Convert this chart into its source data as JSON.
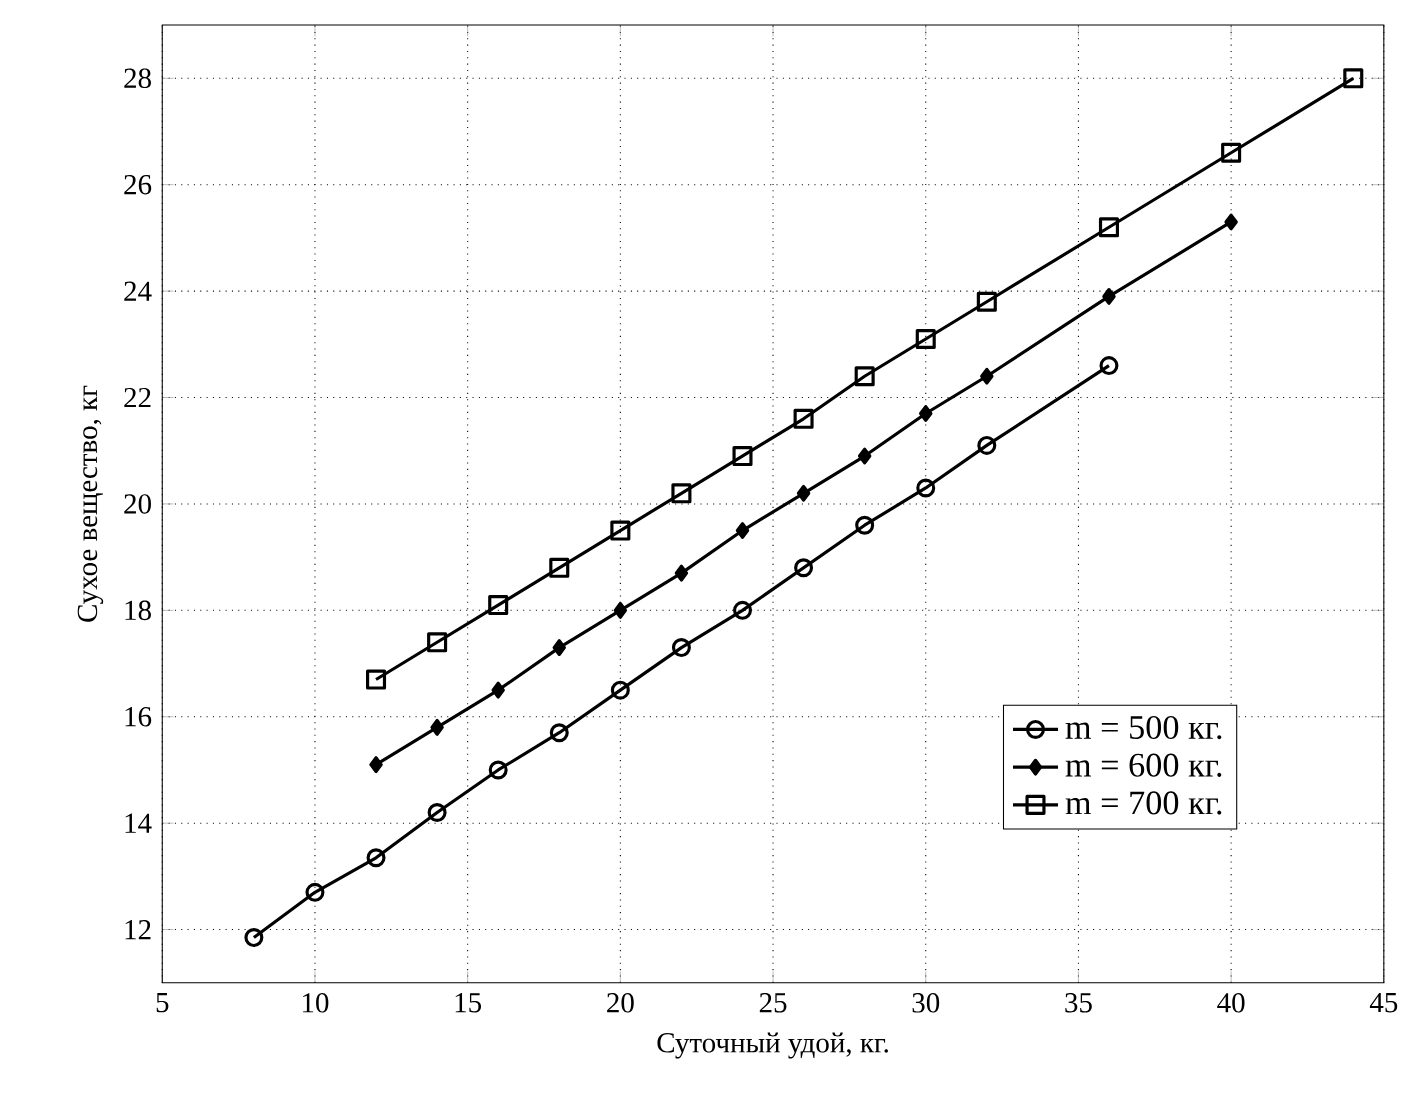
{
  "chart_data": {
    "type": "line",
    "xlabel": "Суточный удой, кг.",
    "ylabel": "Сухое вещество, кг",
    "xlim": [
      5,
      45
    ],
    "ylim": [
      11,
      29
    ],
    "xticks": [
      5,
      10,
      15,
      20,
      25,
      30,
      35,
      40,
      45
    ],
    "yticks": [
      12,
      14,
      16,
      18,
      20,
      22,
      24,
      26,
      28
    ],
    "grid": true,
    "legend": "bottom right",
    "line_style": "solid",
    "series": [
      {
        "name": "m = 500 кг.",
        "color": "#000000",
        "marker": "circle",
        "x": [
          8,
          10,
          12,
          14,
          16,
          18,
          20,
          22,
          24,
          26,
          28,
          30,
          32,
          36
        ],
        "values": [
          11.85,
          12.7,
          13.35,
          14.2,
          15.0,
          15.7,
          16.5,
          17.3,
          18.0,
          18.8,
          19.6,
          20.3,
          21.1,
          22.6
        ]
      },
      {
        "name": "m = 600 кг.",
        "color": "#000000",
        "marker": "diamond",
        "x": [
          12,
          14,
          16,
          18,
          20,
          22,
          24,
          26,
          28,
          30,
          32,
          36,
          40
        ],
        "values": [
          15.1,
          15.8,
          16.5,
          17.3,
          18.0,
          18.7,
          19.5,
          20.2,
          20.9,
          21.7,
          22.4,
          23.9,
          25.3
        ]
      },
      {
        "name": "m = 700 кг.",
        "color": "#000000",
        "marker": "square",
        "x": [
          12,
          14,
          16,
          18,
          20,
          22,
          24,
          26,
          28,
          30,
          32,
          36,
          40,
          44
        ],
        "values": [
          16.7,
          17.4,
          18.1,
          18.8,
          19.5,
          20.2,
          20.9,
          21.6,
          22.4,
          23.1,
          23.8,
          25.2,
          26.6,
          28.0
        ]
      }
    ]
  }
}
